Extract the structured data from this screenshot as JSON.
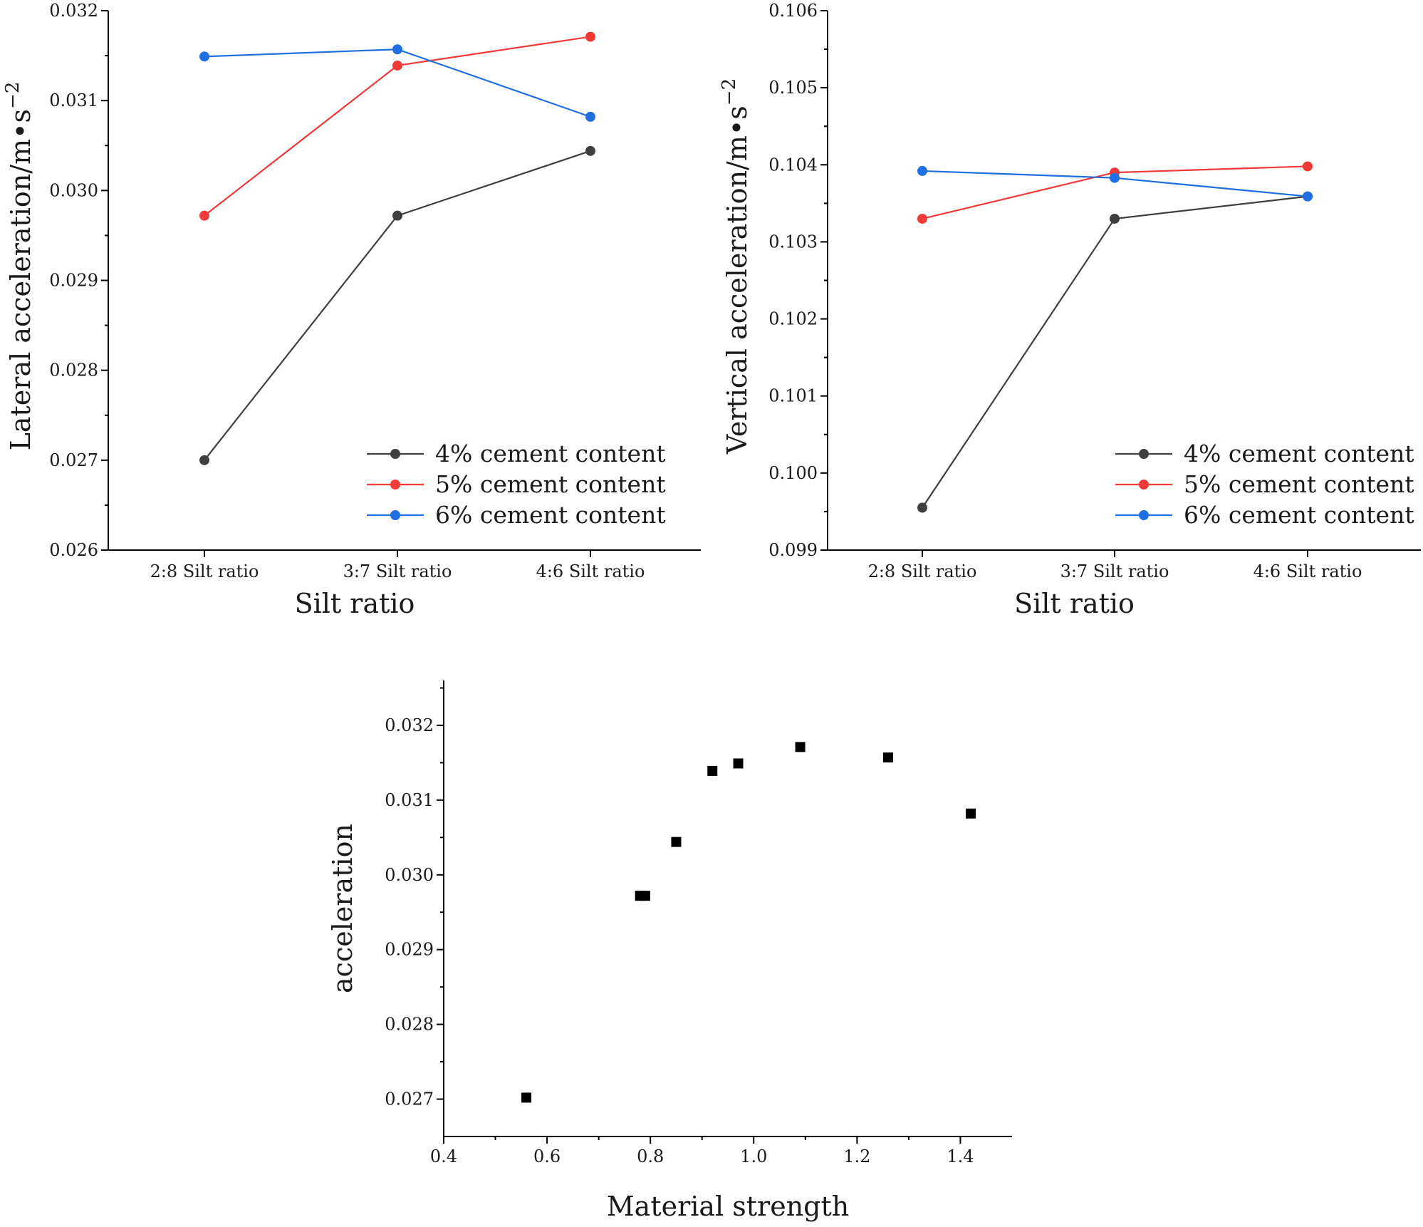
{
  "chart_data": [
    {
      "type": "line",
      "title": "",
      "xlabel": "Silt ratio",
      "ylabel": "Lateral acceleration/m•s",
      "ylabel_exponent": "−2",
      "categories": [
        "2:8 Silt ratio",
        "3:7 Silt ratio",
        "4:6 Silt ratio"
      ],
      "ylim": [
        0.026,
        0.032
      ],
      "yticks": [
        0.026,
        0.027,
        0.028,
        0.029,
        0.03,
        0.031,
        0.032
      ],
      "ytick_labels": [
        "0.026",
        "0.027",
        "0.028",
        "0.029",
        "0.030",
        "0.031",
        "0.032"
      ],
      "legend_position": "bottom-right",
      "series": [
        {
          "name": "4% cement content",
          "color": "#3f3f3f",
          "values": [
            0.027,
            0.02972,
            0.03044
          ]
        },
        {
          "name": "5% cement content",
          "color": "#f03a3a",
          "values": [
            0.02972,
            0.03139,
            0.03171
          ]
        },
        {
          "name": "6% cement content",
          "color": "#1f6fe0",
          "values": [
            0.03149,
            0.03157,
            0.03082
          ]
        }
      ]
    },
    {
      "type": "line",
      "title": "",
      "xlabel": "Silt ratio",
      "ylabel": "Vertical acceleration/m•s",
      "ylabel_exponent": "−2",
      "categories": [
        "2:8 Silt ratio",
        "3:7 Silt ratio",
        "4:6 Silt ratio"
      ],
      "ylim": [
        0.099,
        0.106
      ],
      "yticks": [
        0.099,
        0.1,
        0.101,
        0.102,
        0.103,
        0.104,
        0.105,
        0.106
      ],
      "ytick_labels": [
        "0.099",
        "0.100",
        "0.101",
        "0.102",
        "0.103",
        "0.104",
        "0.105",
        "0.106"
      ],
      "legend_position": "bottom-right",
      "series": [
        {
          "name": "4% cement content",
          "color": "#3f3f3f",
          "values": [
            0.09955,
            0.1033,
            0.10359
          ]
        },
        {
          "name": "5% cement content",
          "color": "#f03a3a",
          "values": [
            0.1033,
            0.1039,
            0.10398
          ]
        },
        {
          "name": "6% cement content",
          "color": "#1f6fe0",
          "values": [
            0.10392,
            0.10383,
            0.10359
          ]
        }
      ]
    },
    {
      "type": "scatter",
      "title": "",
      "xlabel": "Material strength",
      "ylabel": "acceleration",
      "xlim": [
        0.4,
        1.5
      ],
      "ylim": [
        0.0265,
        0.0326
      ],
      "xticks": [
        0.4,
        0.6,
        0.8,
        1.0,
        1.2,
        1.4
      ],
      "xtick_labels": [
        "0.4",
        "0.6",
        "0.8",
        "1.0",
        "1.2",
        "1.4"
      ],
      "yticks": [
        0.027,
        0.028,
        0.029,
        0.03,
        0.031,
        0.032
      ],
      "ytick_labels": [
        "0.027",
        "0.028",
        "0.029",
        "0.030",
        "0.031",
        "0.032"
      ],
      "marker_color": "#000000",
      "points": [
        {
          "x": 0.56,
          "y": 0.02702
        },
        {
          "x": 0.78,
          "y": 0.02972
        },
        {
          "x": 0.79,
          "y": 0.02972
        },
        {
          "x": 0.85,
          "y": 0.03044
        },
        {
          "x": 0.92,
          "y": 0.03139
        },
        {
          "x": 0.97,
          "y": 0.03149
        },
        {
          "x": 1.09,
          "y": 0.03171
        },
        {
          "x": 1.26,
          "y": 0.03157
        },
        {
          "x": 1.42,
          "y": 0.03082
        }
      ]
    }
  ]
}
